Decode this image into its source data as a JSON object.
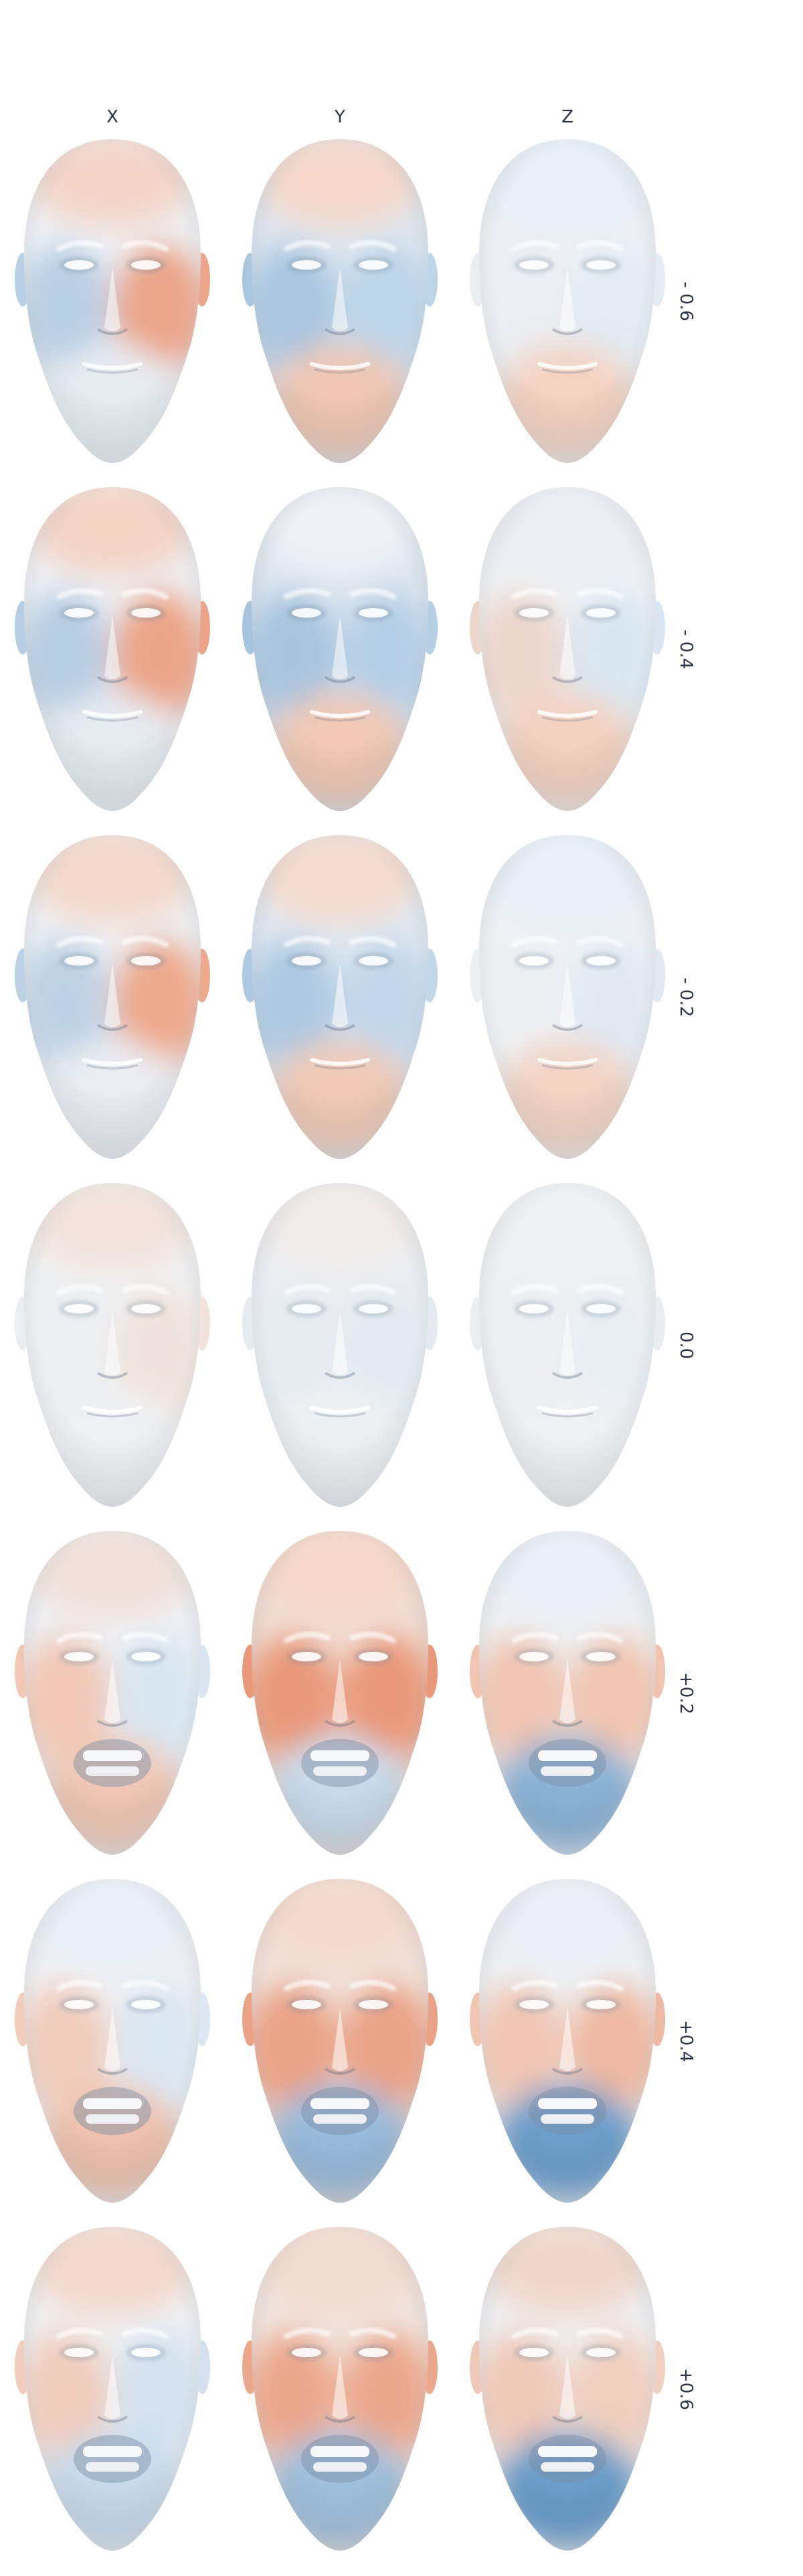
{
  "columns": [
    "X",
    "Y",
    "Z"
  ],
  "rows": [
    {
      "label": "- 0.6",
      "mouth": "closed",
      "tints": [
        {
          "base": "#eef1f5",
          "upper": "#f3d4c7",
          "left": "#b9cfe3",
          "right": "#eba58a",
          "jaw": "#e7ecf1"
        },
        {
          "base": "#dfe7ef",
          "upper": "#f5d8ca",
          "left": "#a9c6df",
          "right": "#bcd4e8",
          "jaw": "#efc7b4"
        },
        {
          "base": "#edf0f4",
          "upper": "#e6eef6",
          "left": "#eaedf1",
          "right": "#e3ebf3",
          "jaw": "#f3d3c2"
        }
      ]
    },
    {
      "label": "- 0.4",
      "mouth": "closed",
      "tints": [
        {
          "base": "#eef0f4",
          "upper": "#f3d3c4",
          "left": "#b7cde2",
          "right": "#eba487",
          "jaw": "#e6ebf0"
        },
        {
          "base": "#dde6ef",
          "upper": "#eef1f5",
          "left": "#a7c4de",
          "right": "#b5cfe6",
          "jaw": "#f1c9b5"
        },
        {
          "base": "#eef1f4",
          "upper": "#eaeef3",
          "left": "#ecd6cc",
          "right": "#d9e6f1",
          "jaw": "#f3d2c1"
        }
      ]
    },
    {
      "label": "- 0.2",
      "mouth": "closed",
      "tints": [
        {
          "base": "#edf0f4",
          "upper": "#f4d8ca",
          "left": "#bdd1e4",
          "right": "#eda98c",
          "jaw": "#e9edf2"
        },
        {
          "base": "#e0e8f0",
          "upper": "#f5dbcd",
          "left": "#adc9e1",
          "right": "#c2d7ea",
          "jaw": "#f0cab7"
        },
        {
          "base": "#eef1f4",
          "upper": "#e7eef5",
          "left": "#edf0f3",
          "right": "#e1e9f2",
          "jaw": "#f2d4c5"
        }
      ]
    },
    {
      "label": "0.0",
      "mouth": "closed",
      "tints": [
        {
          "base": "#eef0f2",
          "upper": "#f3e3dc",
          "left": "#ebeef1",
          "right": "#f0e3dd",
          "jaw": "#eef0f3"
        },
        {
          "base": "#eaedf1",
          "upper": "#f0ebe9",
          "left": "#e6ebf0",
          "right": "#e4eaf0",
          "jaw": "#edf0f2"
        },
        {
          "base": "#eef0f2",
          "upper": "#eff0f1",
          "left": "#ebeef1",
          "right": "#e8edf2",
          "jaw": "#eef0f2"
        }
      ]
    },
    {
      "label": "+0.2",
      "mouth": "open",
      "tints": [
        {
          "base": "#edf0f4",
          "upper": "#f2e1da",
          "left": "#f1c8b6",
          "right": "#d9e6f1",
          "jaw": "#f0c8b5"
        },
        {
          "base": "#f0ddd4",
          "upper": "#f6d9cb",
          "left": "#e99879",
          "right": "#e99879",
          "jaw": "#c9dbeb"
        },
        {
          "base": "#edf0f3",
          "upper": "#e9eef4",
          "left": "#f0c4b0",
          "right": "#f0c4b0",
          "jaw": "#8cb3d6"
        }
      ]
    },
    {
      "label": "+0.4",
      "mouth": "open",
      "tints": [
        {
          "base": "#eef0f3",
          "upper": "#e8eef5",
          "left": "#f1cdbd",
          "right": "#dbe7f2",
          "jaw": "#eec2ae"
        },
        {
          "base": "#f0e2db",
          "upper": "#f4dacd",
          "left": "#eaa286",
          "right": "#eaa286",
          "jaw": "#98bbdb"
        },
        {
          "base": "#edf0f3",
          "upper": "#eaeef4",
          "left": "#f0c6b3",
          "right": "#eeb9a2",
          "jaw": "#6d9fcc"
        }
      ]
    },
    {
      "label": "+0.6",
      "mouth": "open",
      "tints": [
        {
          "base": "#eef0f3",
          "upper": "#f4d8cb",
          "left": "#f0cdbe",
          "right": "#d3e1ee",
          "jaw": "#c7daeb"
        },
        {
          "base": "#f0e5e0",
          "upper": "#f2dcd0",
          "left": "#eba88d",
          "right": "#eba88d",
          "jaw": "#9fc0dd"
        },
        {
          "base": "#eef0f3",
          "upper": "#f0d6c9",
          "left": "#efc9b8",
          "right": "#f0d0c0",
          "jaw": "#6a9dca"
        }
      ]
    }
  ]
}
